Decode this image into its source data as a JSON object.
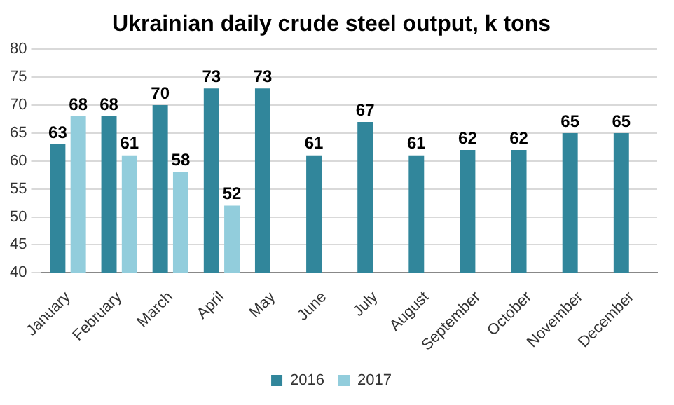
{
  "chart_data": {
    "type": "bar",
    "title": "Ukrainian daily crude steel output, k tons",
    "categories": [
      "January",
      "February",
      "March",
      "April",
      "May",
      "June",
      "July",
      "August",
      "September",
      "October",
      "November",
      "December"
    ],
    "series": [
      {
        "name": "2016",
        "color": "#31869b",
        "values": [
          63,
          68,
          70,
          73,
          73,
          61,
          67,
          61,
          62,
          62,
          65,
          65
        ]
      },
      {
        "name": "2017",
        "color": "#92cddc",
        "values": [
          68,
          61,
          58,
          52,
          null,
          null,
          null,
          null,
          null,
          null,
          null,
          null
        ]
      }
    ],
    "ylim": [
      40,
      80
    ],
    "yticks": [
      40,
      45,
      50,
      55,
      60,
      65,
      70,
      75,
      80
    ],
    "grid": "y",
    "legend": "bottom",
    "data_labels": true
  }
}
